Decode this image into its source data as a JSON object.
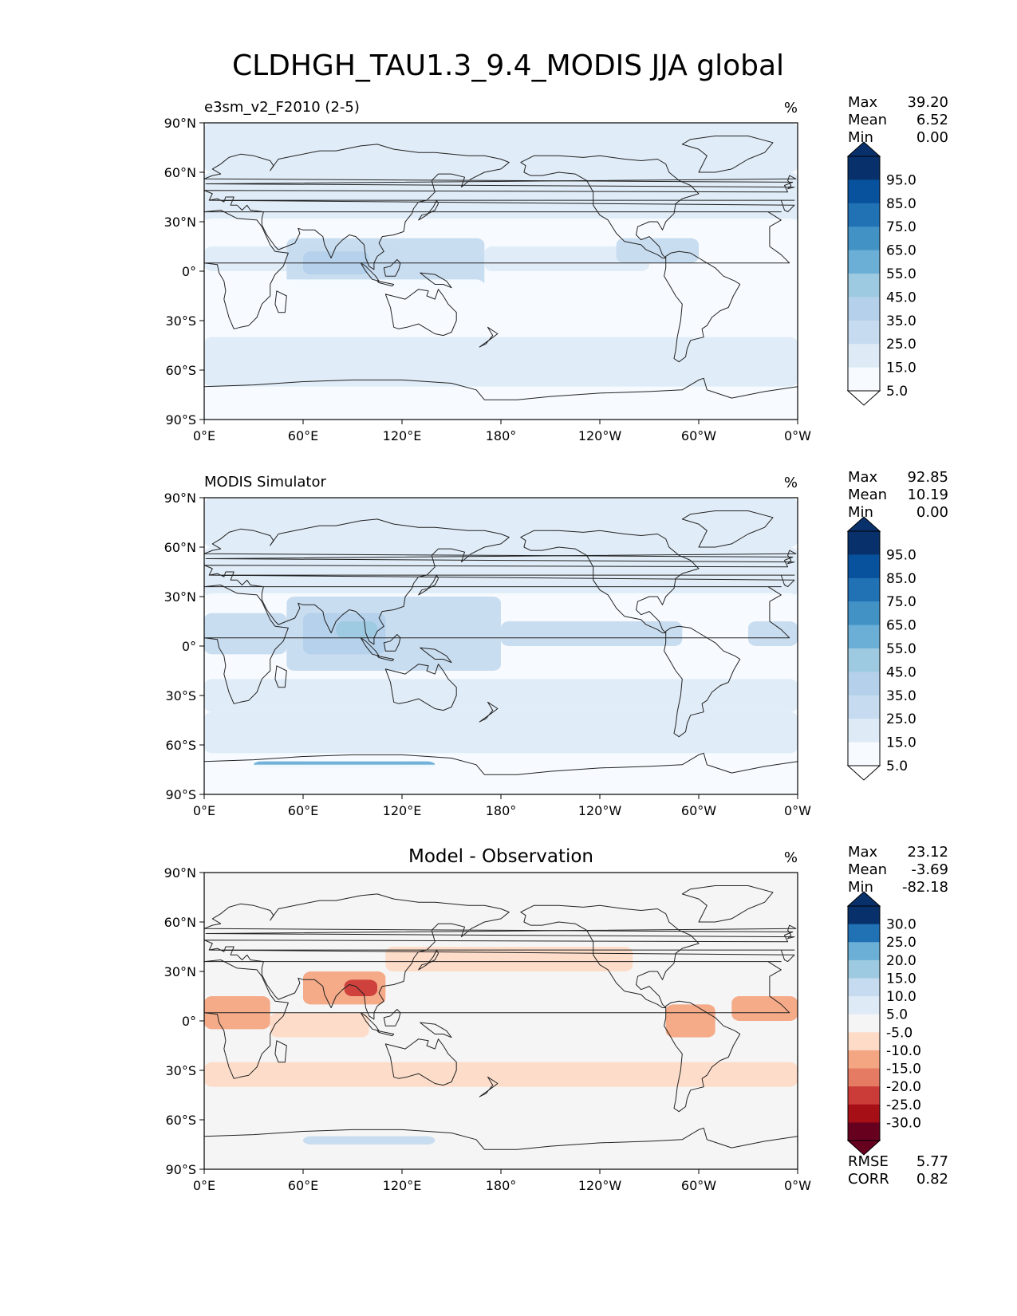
{
  "figure_title": "CLDHGH_TAU1.3_9.4_MODIS JJA global",
  "colors": {
    "seq": [
      "#f7fbff",
      "#deebf7",
      "#c6dbef",
      "#b4d0ea",
      "#9ecae1",
      "#6baed6",
      "#4292c6",
      "#2171b5",
      "#08519c",
      "#08306b"
    ],
    "seq_under": "#ffffff",
    "seq_over": "#08306b",
    "div": [
      "#67001f",
      "#a50f15",
      "#cb3b38",
      "#e57b62",
      "#f4a582",
      "#fddbc7",
      "#f5f5f5",
      "#deebf7",
      "#c6dbef",
      "#9ecae1",
      "#6baed6",
      "#2171b5",
      "#08306b"
    ],
    "land": "#ffffff",
    "coast": "#222222"
  },
  "chart_data": [
    {
      "type": "heatmap",
      "title": "",
      "left_title": "e3sm_v2_F2010 (2-5)",
      "units": "%",
      "stats": {
        "max_label": "Max",
        "max": "39.20",
        "mean_label": "Mean",
        "mean": "6.52",
        "min_label": "Min",
        "min": "0.00"
      },
      "colorbar": {
        "levels": [
          "95.0",
          "85.0",
          "75.0",
          "65.0",
          "55.0",
          "45.0",
          "35.0",
          "25.0",
          "15.0",
          "5.0"
        ],
        "extend": "both"
      },
      "xticks": [
        "0°E",
        "60°E",
        "120°E",
        "180°",
        "120°W",
        "60°W",
        "0°W"
      ],
      "yticks": [
        "90°N",
        "60°N",
        "30°N",
        "0°",
        "30°S",
        "60°S",
        "90°S"
      ],
      "xlim": [
        0,
        360
      ],
      "ylim": [
        -90,
        90
      ],
      "field": [
        {
          "lat": [
            60,
            90
          ],
          "lon": [
            0,
            360
          ],
          "level": 1
        },
        {
          "lat": [
            30,
            60
          ],
          "lon": [
            0,
            360
          ],
          "level": 1
        },
        {
          "lat": [
            18,
            32
          ],
          "lon": [
            0,
            360
          ],
          "level": 0
        },
        {
          "lat": [
            0,
            15
          ],
          "lon": [
            0,
            120
          ],
          "level": 1
        },
        {
          "lat": [
            -10,
            20
          ],
          "lon": [
            50,
            170
          ],
          "level": 2
        },
        {
          "lat": [
            -2,
            12
          ],
          "lon": [
            60,
            100
          ],
          "level": 3
        },
        {
          "lat": [
            0,
            15
          ],
          "lon": [
            170,
            270
          ],
          "level": 1
        },
        {
          "lat": [
            5,
            20
          ],
          "lon": [
            250,
            300
          ],
          "level": 2
        },
        {
          "lat": [
            -25,
            -5
          ],
          "lon": [
            180,
            290
          ],
          "level": 0
        },
        {
          "lat": [
            -35,
            -5
          ],
          "lon": [
            0,
            170
          ],
          "level": 0
        },
        {
          "lat": [
            -70,
            -40
          ],
          "lon": [
            0,
            360
          ],
          "level": 1
        },
        {
          "lat": [
            -90,
            -72
          ],
          "lon": [
            0,
            360
          ],
          "level": 0
        }
      ]
    },
    {
      "type": "heatmap",
      "title": "",
      "left_title": "MODIS Simulator",
      "units": "%",
      "stats": {
        "max_label": "Max",
        "max": "92.85",
        "mean_label": "Mean",
        "mean": "10.19",
        "min_label": "Min",
        "min": "0.00"
      },
      "colorbar": {
        "levels": [
          "95.0",
          "85.0",
          "75.0",
          "65.0",
          "55.0",
          "45.0",
          "35.0",
          "25.0",
          "15.0",
          "5.0"
        ],
        "extend": "both"
      },
      "xticks": [
        "0°E",
        "60°E",
        "120°E",
        "180°",
        "120°W",
        "60°W",
        "0°W"
      ],
      "yticks": [
        "90°N",
        "60°N",
        "30°N",
        "0°",
        "30°S",
        "60°S",
        "90°S"
      ],
      "xlim": [
        0,
        360
      ],
      "ylim": [
        -90,
        90
      ],
      "field": [
        {
          "lat": [
            60,
            90
          ],
          "lon": [
            0,
            360
          ],
          "level": 1
        },
        {
          "lat": [
            30,
            60
          ],
          "lon": [
            0,
            360
          ],
          "level": 1
        },
        {
          "lat": [
            18,
            32
          ],
          "lon": [
            0,
            360
          ],
          "level": 0
        },
        {
          "lat": [
            -5,
            20
          ],
          "lon": [
            0,
            50
          ],
          "level": 2
        },
        {
          "lat": [
            -15,
            30
          ],
          "lon": [
            50,
            180
          ],
          "level": 2
        },
        {
          "lat": [
            -5,
            20
          ],
          "lon": [
            60,
            110
          ],
          "level": 3
        },
        {
          "lat": [
            5,
            15
          ],
          "lon": [
            80,
            105
          ],
          "level": 4
        },
        {
          "lat": [
            0,
            15
          ],
          "lon": [
            180,
            290
          ],
          "level": 2
        },
        {
          "lat": [
            0,
            15
          ],
          "lon": [
            330,
            360
          ],
          "level": 2
        },
        {
          "lat": [
            -40,
            -20
          ],
          "lon": [
            0,
            360
          ],
          "level": 1
        },
        {
          "lat": [
            -65,
            -40
          ],
          "lon": [
            0,
            360
          ],
          "level": 1
        },
        {
          "lat": [
            -74,
            -70
          ],
          "lon": [
            30,
            140
          ],
          "level": 5
        },
        {
          "lat": [
            -90,
            -72
          ],
          "lon": [
            0,
            360
          ],
          "level": 0
        }
      ]
    },
    {
      "type": "heatmap",
      "title": "Model - Observation",
      "left_title": "",
      "units": "%",
      "stats": {
        "max_label": "Max",
        "max": "23.12",
        "mean_label": "Mean",
        "mean": "-3.69",
        "min_label": "Min",
        "min": "-82.18"
      },
      "colorbar": {
        "levels": [
          "30.0",
          "25.0",
          "20.0",
          "15.0",
          "10.0",
          "5.0",
          "-5.0",
          "-10.0",
          "-15.0",
          "-20.0",
          "-25.0",
          "-30.0"
        ],
        "extend": "both"
      },
      "rmse_label": "RMSE",
      "rmse": "5.77",
      "corr_label": "CORR",
      "corr": "0.82",
      "xticks": [
        "0°E",
        "60°E",
        "120°E",
        "180°",
        "120°W",
        "60°W",
        "0°W"
      ],
      "yticks": [
        "90°N",
        "60°N",
        "30°N",
        "0°",
        "30°S",
        "60°S",
        "90°S"
      ],
      "xlim": [
        0,
        360
      ],
      "ylim": [
        -90,
        90
      ],
      "field": [
        {
          "lat": [
            30,
            45
          ],
          "lon": [
            110,
            260
          ],
          "level": -1
        },
        {
          "lat": [
            -5,
            15
          ],
          "lon": [
            0,
            40
          ],
          "level": -2
        },
        {
          "lat": [
            10,
            30
          ],
          "lon": [
            60,
            110
          ],
          "level": -2
        },
        {
          "lat": [
            15,
            25
          ],
          "lon": [
            85,
            105
          ],
          "level": -4
        },
        {
          "lat": [
            -10,
            5
          ],
          "lon": [
            40,
            100
          ],
          "level": -1
        },
        {
          "lat": [
            -10,
            10
          ],
          "lon": [
            280,
            310
          ],
          "level": -2
        },
        {
          "lat": [
            0,
            15
          ],
          "lon": [
            320,
            360
          ],
          "level": -2
        },
        {
          "lat": [
            -40,
            -25
          ],
          "lon": [
            0,
            360
          ],
          "level": -1
        },
        {
          "lat": [
            -75,
            -70
          ],
          "lon": [
            60,
            140
          ],
          "level": 2
        }
      ]
    }
  ]
}
